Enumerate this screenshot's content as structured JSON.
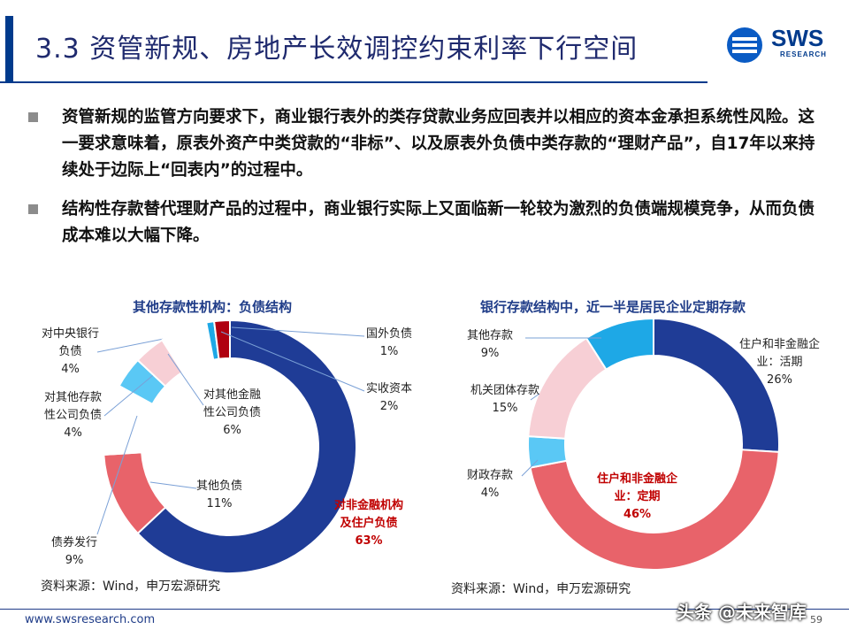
{
  "header": {
    "title": "3.3 资管新规、房地产长效调控约束利率下行空间",
    "logo_text": "SWS",
    "logo_sub": "RESEARCH"
  },
  "bullets": [
    "资管新规的监管方向要求下，商业银行表外的类存贷款业务应回表并以相应的资本金承担系统性风险。这一要求意味着，原表外资产中类贷款的“非标”、以及原表外负债中类存款的“理财产品”，自17年以来持续处于边际上“回表内”的过程中。",
    "结构性存款替代理财产品的过程中，商业银行实际上又面临新一轮较为激烈的负债端规模竞争，从而负债成本难以大幅下降。"
  ],
  "chart_data": [
    {
      "type": "pie",
      "donut": true,
      "title": "其他存款性机构：负债结构",
      "slices": [
        {
          "label": "对非金融机构及住户负债",
          "label_lines": [
            "对非金融机构",
            "及住户负债"
          ],
          "value": 63,
          "value_text": "63%",
          "color": "#1f3c96",
          "highlight": true
        },
        {
          "label": "其他负债",
          "label_lines": [
            "其他负债"
          ],
          "value": 11,
          "value_text": "11%",
          "color": "#e8636a"
        },
        {
          "label": "债券发行",
          "label_lines": [
            "债券发行"
          ],
          "value": 9,
          "value_text": "9%",
          "color": "#ffffff"
        },
        {
          "label": "对其他存款性公司负债",
          "label_lines": [
            "对其他存款",
            "性公司负债"
          ],
          "value": 4,
          "value_text": "4%",
          "color": "#5ac8f5"
        },
        {
          "label": "对中央银行负债",
          "label_lines": [
            "对中央银行",
            "负债"
          ],
          "value": 4,
          "value_text": "4%",
          "color": "#f7cfd5"
        },
        {
          "label": "对其他金融性公司负债",
          "label_lines": [
            "对其他金融",
            "性公司负债"
          ],
          "value": 6,
          "value_text": "6%",
          "color": "#ffffff"
        },
        {
          "label": "国外负债",
          "label_lines": [
            "国外负债"
          ],
          "value": 1,
          "value_text": "1%",
          "color": "#1ea8e6"
        },
        {
          "label": "实收资本",
          "label_lines": [
            "实收资本"
          ],
          "value": 2,
          "value_text": "2%",
          "color": "#b00010"
        }
      ],
      "source": "资料来源：Wind，申万宏源研究"
    },
    {
      "type": "pie",
      "donut": true,
      "title": "银行存款结构中，近一半是居民企业定期存款",
      "slices": [
        {
          "label": "住户和非金融企业：活期",
          "label_lines": [
            "住户和非金融企",
            "业：活期"
          ],
          "value": 26,
          "value_text": "26%",
          "color": "#1f3c96"
        },
        {
          "label": "住户和非金融企业：定期",
          "label_lines": [
            "住户和非金融企",
            "业：定期"
          ],
          "value": 46,
          "value_text": "46%",
          "color": "#e8636a",
          "highlight": true
        },
        {
          "label": "财政存款",
          "label_lines": [
            "财政存款"
          ],
          "value": 4,
          "value_text": "4%",
          "color": "#5ac8f5"
        },
        {
          "label": "机关团体存款",
          "label_lines": [
            "机关团体存款"
          ],
          "value": 15,
          "value_text": "15%",
          "color": "#f7cfd5"
        },
        {
          "label": "其他存款",
          "label_lines": [
            "其他存款"
          ],
          "value": 9,
          "value_text": "9%",
          "color": "#1ea8e6"
        }
      ],
      "source": "资料来源：Wind，申万宏源研究"
    }
  ],
  "footer": {
    "url": "www.swsresearch.com",
    "page": "59",
    "watermark": "头条 @未来智库"
  }
}
